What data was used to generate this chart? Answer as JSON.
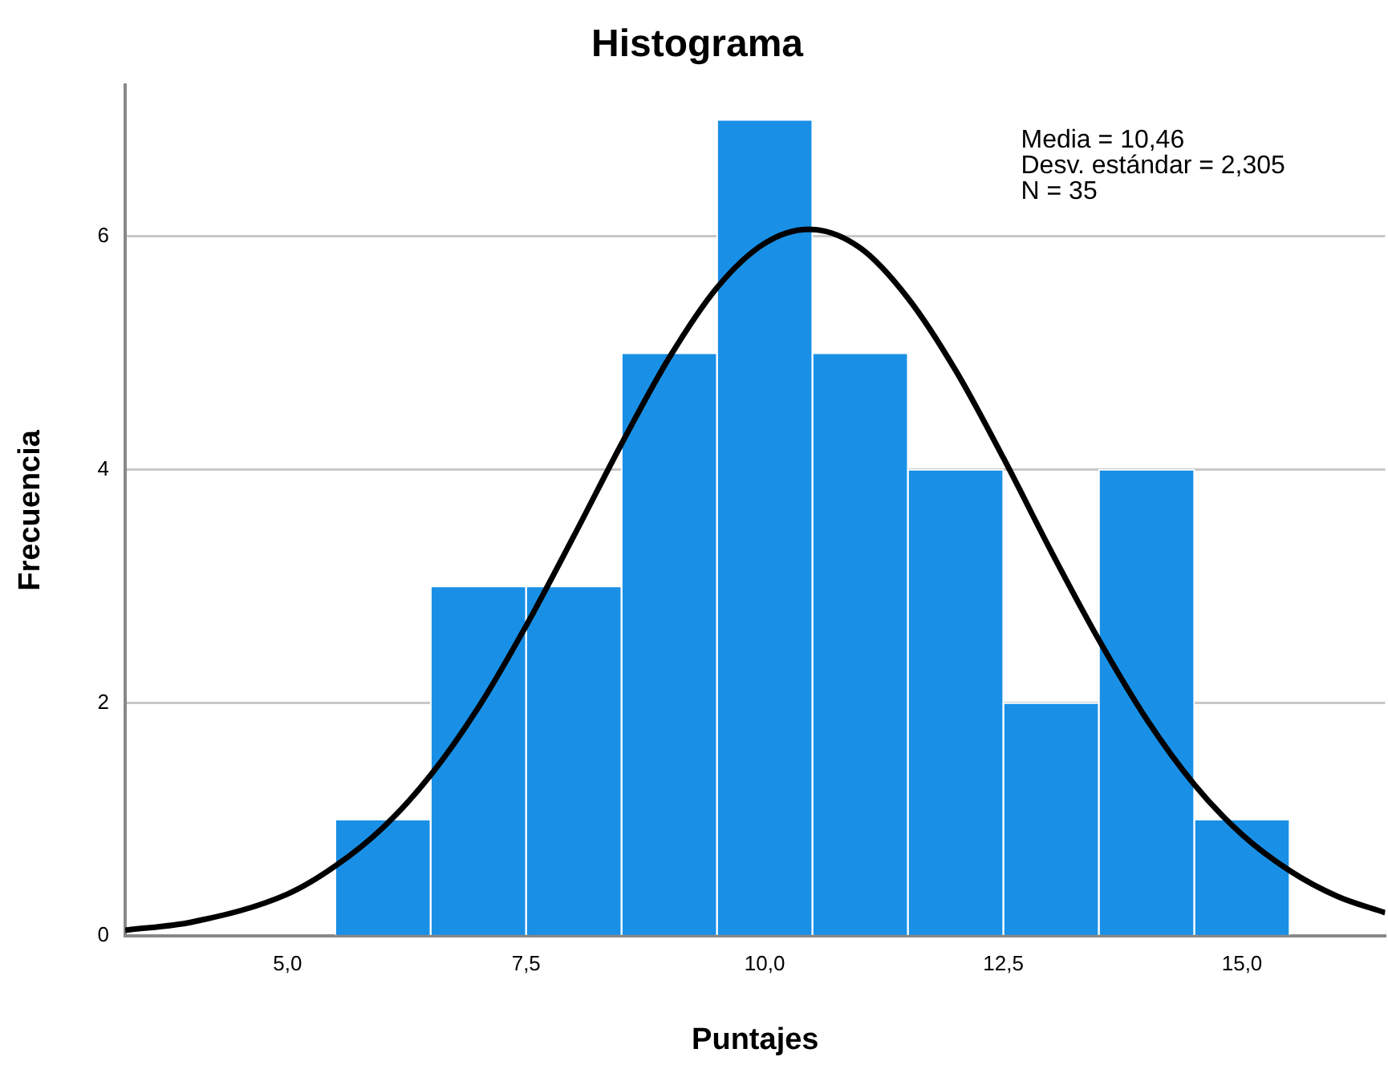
{
  "chart_data": {
    "type": "histogram",
    "title": "Histograma",
    "xlabel": "Puntajes",
    "ylabel": "Frecuencia",
    "bins": [
      5.5,
      6.5,
      7.5,
      8.5,
      9.5,
      10.5,
      11.5,
      12.5,
      13.5,
      14.5,
      15.5
    ],
    "values": [
      1,
      3,
      3,
      5,
      7,
      5,
      4,
      2,
      4,
      1
    ],
    "color": "#1990e6",
    "series": [
      {
        "type": "line",
        "color": "#000000",
        "x": [
          3.3,
          4,
          5,
          5.5,
          6,
          6.5,
          7,
          7.5,
          8,
          8.5,
          9,
          9.5,
          10,
          10.46,
          11,
          11.5,
          12,
          12.5,
          13,
          13.5,
          14,
          14.5,
          15,
          15.5,
          16,
          16.5
        ],
        "values": [
          0.05,
          0.12,
          0.36,
          0.6,
          0.93,
          1.38,
          1.96,
          2.66,
          3.43,
          4.22,
          4.96,
          5.56,
          5.94,
          6.06,
          5.9,
          5.47,
          4.85,
          4.1,
          3.3,
          2.54,
          1.86,
          1.3,
          0.87,
          0.56,
          0.34,
          0.2
        ]
      }
    ],
    "xlim": [
      3.3,
      16.5
    ],
    "xticks": [
      {
        "value": 5,
        "label": "5,0"
      },
      {
        "value": 7.5,
        "label": "7,5"
      },
      {
        "value": 10,
        "label": "10,0"
      },
      {
        "value": 12.5,
        "label": "12,5"
      },
      {
        "value": 15,
        "label": "15,0"
      }
    ],
    "ylim": [
      0,
      7.3
    ],
    "yticks": [
      0,
      2,
      4,
      6
    ],
    "grid": "y",
    "legend": false,
    "annotations": [
      "Media = 10,46",
      "Desv. estándar = 2,305",
      "N = 35"
    ]
  }
}
